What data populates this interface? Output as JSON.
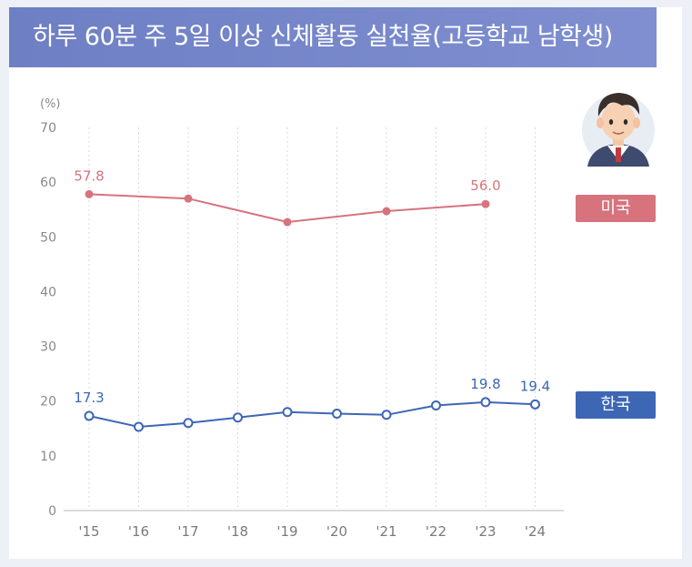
{
  "title": "하루 60분 주 5일 이상 신체활동 실천율(고등학교 남학생)",
  "colors": {
    "usa": "#d6737d",
    "korea": "#3d66b5",
    "title_bg": "#7383c8"
  },
  "icon": "student-avatar-icon",
  "chart_data": {
    "type": "line",
    "title": "하루 60분 주 5일 이상 신체활동 실천율(고등학교 남학생)",
    "ylabel": "(%)",
    "xlabel": "",
    "ylim": [
      0,
      70
    ],
    "yticks": [
      "0",
      "10",
      "20",
      "30",
      "40",
      "50",
      "60",
      "70"
    ],
    "categories": [
      "'15",
      "'16",
      "'17",
      "'18",
      "'19",
      "'20",
      "'21",
      "'22",
      "'23",
      "'24"
    ],
    "grid": "vertical dotted",
    "series": [
      {
        "name": "미국",
        "color": "#d6737d",
        "values": [
          57.8,
          null,
          57.0,
          null,
          52.7,
          null,
          54.7,
          null,
          56.0,
          null
        ],
        "labels": {
          "0": "57.8",
          "8": "56.0"
        }
      },
      {
        "name": "한국",
        "color": "#3d66b5",
        "values": [
          17.3,
          15.3,
          16.0,
          17.0,
          18.0,
          17.7,
          17.5,
          19.2,
          19.8,
          19.4
        ],
        "labels": {
          "0": "17.3",
          "8": "19.8",
          "9": "19.4"
        }
      }
    ]
  }
}
